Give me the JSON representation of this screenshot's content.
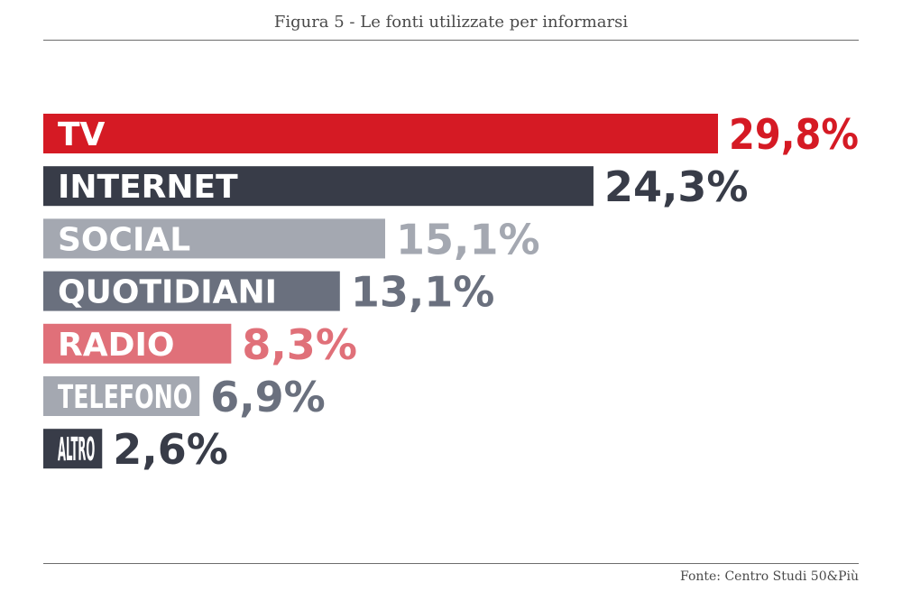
{
  "header": {
    "title": "Figura 5 - Le fonti utilizzate per informarsi"
  },
  "footer": {
    "source": "Fonte: Centro Studi 50&Più"
  },
  "chart_data": {
    "type": "bar",
    "orientation": "horizontal",
    "categories": [
      "TV",
      "INTERNET",
      "SOCIAL",
      "QUOTIDIANI",
      "RADIO",
      "TELEFONO",
      "ALTRO"
    ],
    "values": [
      29.8,
      24.3,
      15.1,
      13.1,
      8.3,
      6.9,
      2.6
    ],
    "value_labels": [
      "29,8%",
      "24,3%",
      "15,1%",
      "13,1%",
      "8,3%",
      "6,9%",
      "2,6%"
    ],
    "bar_colors": [
      "#d51a24",
      "#383c48",
      "#a4a8b1",
      "#6a707e",
      "#e07079",
      "#a4a8b1",
      "#383c48"
    ],
    "value_colors": [
      "#d51a24",
      "#383c48",
      "#a4a8b1",
      "#6a707e",
      "#e07079",
      "#6a707e",
      "#383c48"
    ],
    "xlim": [
      0,
      29.8
    ],
    "grid": false,
    "legend": "none"
  }
}
